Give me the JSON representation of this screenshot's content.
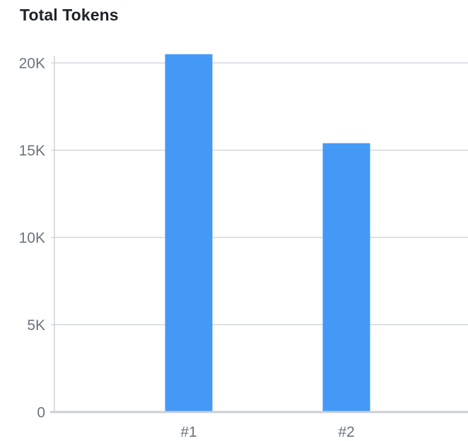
{
  "chart_data": {
    "type": "bar",
    "title": "Total Tokens",
    "categories": [
      "#1",
      "#2"
    ],
    "values": [
      20500,
      15400
    ],
    "ylim": [
      0,
      20000
    ],
    "yticks": [
      {
        "value": 0,
        "label": "0"
      },
      {
        "value": 5000,
        "label": "5K"
      },
      {
        "value": 10000,
        "label": "10K"
      },
      {
        "value": 15000,
        "label": "15K"
      },
      {
        "value": 20000,
        "label": "20K"
      }
    ],
    "grid": true,
    "bar_color": "#4499f7",
    "grid_color": "#c9d1db",
    "axis_color": "#c9ced6"
  }
}
